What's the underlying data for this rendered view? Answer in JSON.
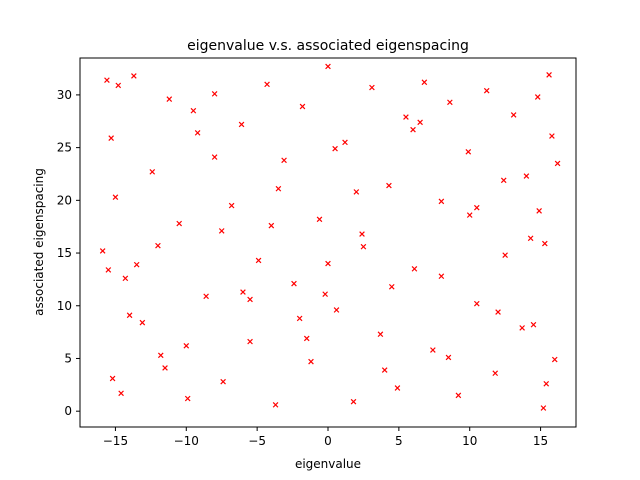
{
  "chart_data": {
    "type": "scatter",
    "title": "eigenvalue v.s. associated eigenspacing",
    "xlabel": "eigenvalue",
    "ylabel": "associated eigenspacing",
    "xlim": [
      -17.5,
      17.5
    ],
    "ylim": [
      -1.5,
      33.5
    ],
    "x_ticks": [
      -15,
      -10,
      -5,
      0,
      5,
      10,
      15
    ],
    "x_tick_labels": [
      "−15",
      "−10",
      "−5",
      "0",
      "5",
      "10",
      "15"
    ],
    "y_ticks": [
      0,
      5,
      10,
      15,
      20,
      25,
      30
    ],
    "y_tick_labels": [
      "0",
      "5",
      "10",
      "15",
      "20",
      "25",
      "30"
    ],
    "grid": false,
    "legend": "none",
    "marker": "x",
    "color": "#ff0000",
    "series": [
      {
        "x": [
          -15.9,
          -15.6,
          -15.2,
          -14.8,
          -14.3,
          -13.7,
          -13.1,
          -12.4,
          -11.8,
          -11.2,
          -10.5,
          -9.9,
          -9.2,
          -8.6,
          -8.0,
          -7.4,
          -6.8,
          -6.1,
          -5.5,
          -4.9,
          -4.3,
          -3.7,
          -3.1,
          -2.4,
          -1.8,
          -1.2,
          -0.6,
          0.0,
          0.6,
          1.2,
          1.8,
          2.4,
          3.1,
          3.7,
          4.3,
          4.9,
          5.5,
          6.1,
          6.8,
          7.4,
          8.0,
          8.6,
          9.2,
          9.9,
          10.5,
          11.2,
          11.8,
          12.4,
          13.1,
          13.7,
          14.3,
          14.8,
          15.2,
          15.6,
          16.0,
          16.2,
          -15.0,
          -14.0,
          -12.0,
          -10.0,
          -8.0,
          -6.0,
          -4.0,
          -2.0,
          0.0,
          2.0,
          4.0,
          6.0,
          8.0,
          10.0,
          12.0,
          14.0,
          15.4,
          -15.3,
          -13.5,
          -11.5,
          -9.5,
          -7.5,
          -5.5,
          -3.5,
          -1.5,
          0.5,
          2.5,
          4.5,
          6.5,
          8.5,
          10.5,
          12.5,
          14.5,
          15.8,
          -14.6,
          -0.2,
          14.9,
          -15.5,
          15.3
        ],
        "y": [
          15.2,
          31.4,
          3.1,
          30.9,
          12.6,
          31.8,
          8.4,
          22.7,
          5.3,
          29.6,
          17.8,
          1.2,
          26.4,
          10.9,
          30.1,
          2.8,
          19.5,
          27.2,
          6.6,
          14.3,
          31.0,
          0.6,
          23.8,
          12.1,
          28.9,
          4.7,
          18.2,
          32.7,
          9.6,
          25.5,
          0.9,
          16.8,
          30.7,
          7.3,
          21.4,
          2.2,
          27.9,
          13.5,
          31.2,
          5.8,
          19.9,
          29.3,
          1.5,
          24.6,
          10.2,
          30.4,
          3.6,
          21.9,
          28.1,
          7.9,
          16.4,
          29.8,
          0.3,
          31.9,
          4.9,
          23.5,
          20.3,
          9.1,
          15.7,
          6.2,
          24.1,
          11.3,
          17.6,
          8.8,
          14.0,
          20.8,
          3.9,
          26.7,
          12.8,
          18.6,
          9.4,
          22.3,
          2.6,
          25.9,
          13.9,
          4.1,
          28.5,
          17.1,
          10.6,
          21.1,
          6.9,
          24.9,
          15.6,
          11.8,
          27.4,
          5.1,
          19.3,
          14.8,
          8.2,
          26.1,
          1.7,
          11.1,
          19.0,
          13.4,
          15.9
        ]
      }
    ]
  }
}
